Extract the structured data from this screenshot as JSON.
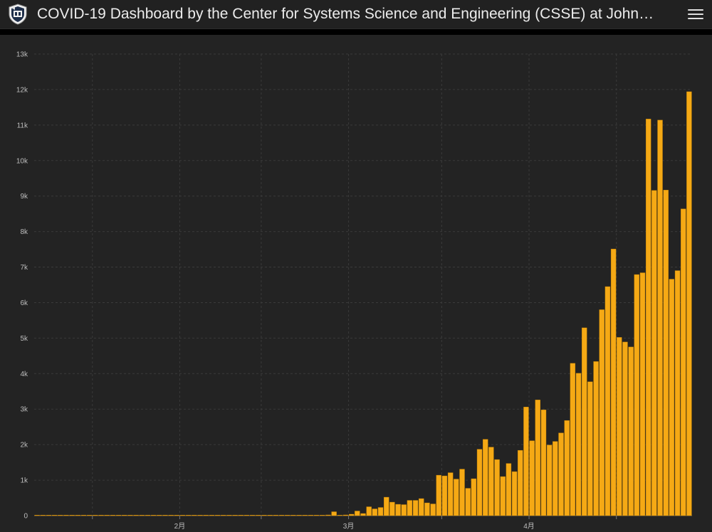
{
  "header": {
    "title": "COVID-19 Dashboard by the Center for Systems Science and Engineering (CSSE) at John…",
    "logo_icon": "university-shield-icon",
    "menu_icon": "hamburger-menu-icon"
  },
  "colors": {
    "bar": "#f5a915",
    "bar_stroke": "#c98500",
    "background": "#232323",
    "grid": "#3a3a3a"
  },
  "chart_data": {
    "type": "bar",
    "title": "",
    "xlabel": "",
    "ylabel": "",
    "ylim": [
      0,
      13000
    ],
    "grid": true,
    "yticks": [
      {
        "value": 0,
        "label": "0"
      },
      {
        "value": 1000,
        "label": "1k"
      },
      {
        "value": 2000,
        "label": "2k"
      },
      {
        "value": 3000,
        "label": "3k"
      },
      {
        "value": 4000,
        "label": "4k"
      },
      {
        "value": 5000,
        "label": "5k"
      },
      {
        "value": 6000,
        "label": "6k"
      },
      {
        "value": 7000,
        "label": "7k"
      },
      {
        "value": 8000,
        "label": "8k"
      },
      {
        "value": 9000,
        "label": "9k"
      },
      {
        "value": 10000,
        "label": "10k"
      },
      {
        "value": 11000,
        "label": "11k"
      },
      {
        "value": 12000,
        "label": "12k"
      },
      {
        "value": 13000,
        "label": "13k"
      }
    ],
    "xticks": [
      {
        "index": 10,
        "label": ""
      },
      {
        "index": 25,
        "label": "2月"
      },
      {
        "index": 39,
        "label": ""
      },
      {
        "index": 54,
        "label": "3月"
      },
      {
        "index": 70,
        "label": ""
      },
      {
        "index": 85,
        "label": "4月"
      },
      {
        "index": 100,
        "label": ""
      }
    ],
    "values": [
      0,
      0,
      0,
      0,
      0,
      0,
      0,
      0,
      0,
      0,
      0,
      0,
      0,
      0,
      0,
      0,
      0,
      0,
      0,
      0,
      0,
      0,
      0,
      0,
      0,
      0,
      0,
      0,
      0,
      0,
      0,
      0,
      0,
      0,
      0,
      0,
      0,
      0,
      0,
      0,
      0,
      0,
      0,
      0,
      0,
      0,
      0,
      0,
      0,
      0,
      20,
      110,
      10,
      20,
      40,
      130,
      60,
      250,
      190,
      230,
      520,
      380,
      320,
      310,
      430,
      430,
      480,
      360,
      330,
      1140,
      1120,
      1210,
      1030,
      1310,
      770,
      1040,
      1870,
      2150,
      1930,
      1580,
      1100,
      1470,
      1240,
      1840,
      3060,
      2110,
      3260,
      2980,
      1990,
      2090,
      2330,
      2680,
      4290,
      4010,
      5290,
      3770,
      4340,
      5800,
      6450,
      7510,
      5020,
      4890,
      4750,
      6790,
      6840,
      11170,
      9160,
      11140,
      9170,
      6660,
      6900,
      8640,
      11940
    ]
  }
}
